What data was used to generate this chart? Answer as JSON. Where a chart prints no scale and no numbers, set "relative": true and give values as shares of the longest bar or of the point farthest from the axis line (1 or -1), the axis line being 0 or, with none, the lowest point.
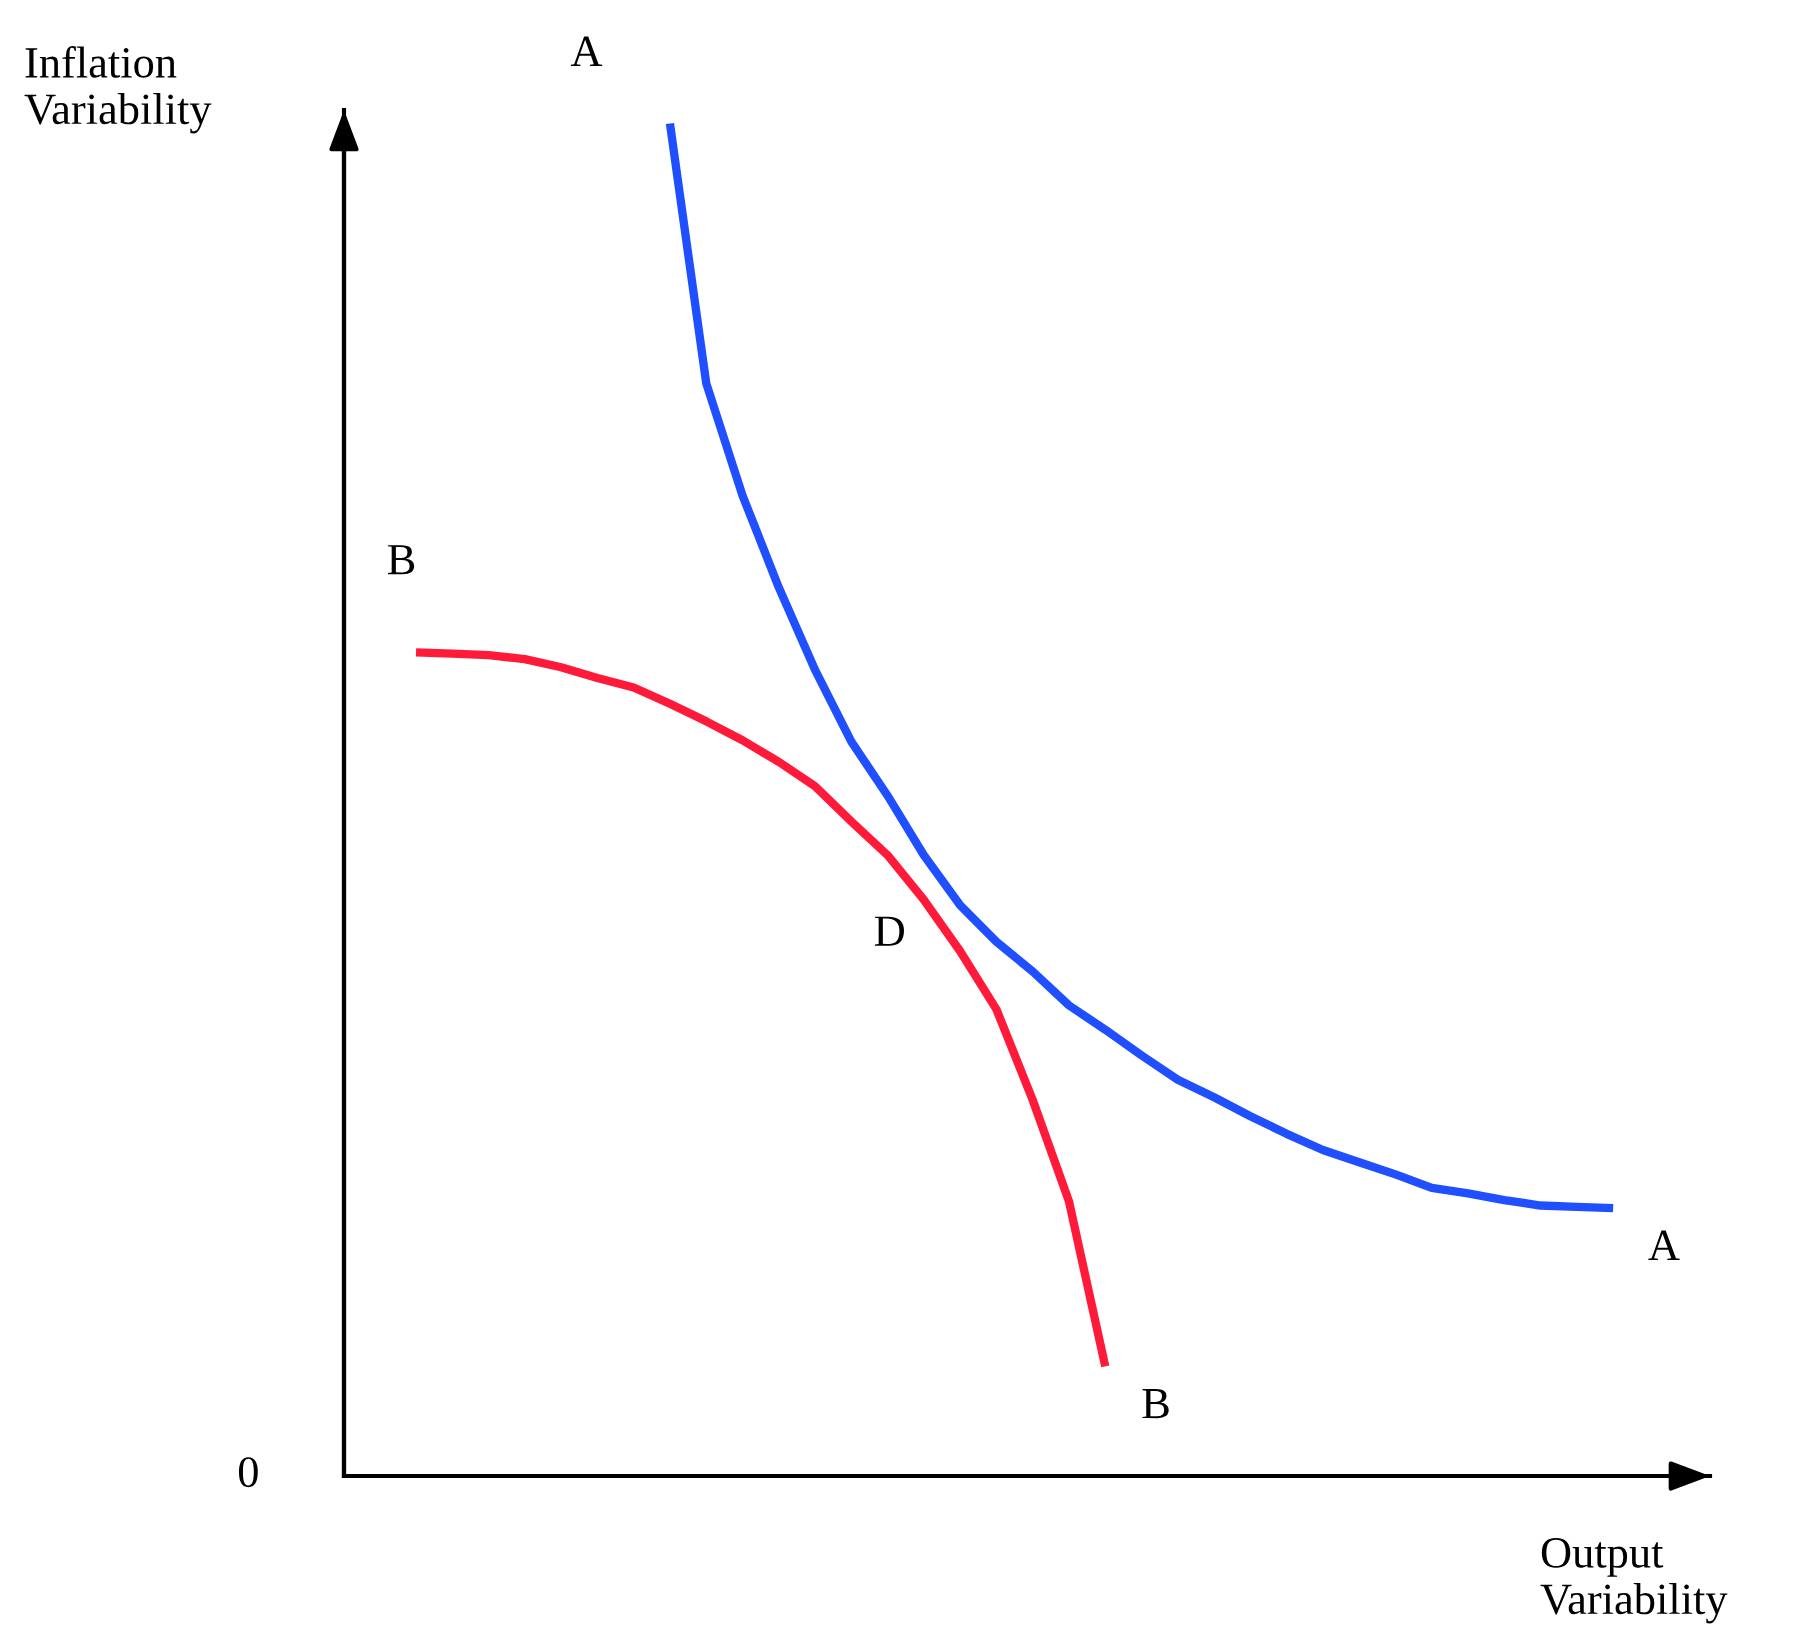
{
  "chart_data": {
    "type": "line",
    "relative": true,
    "xlabel": "Output\nVariability",
    "ylabel": "Inflation\nVariability",
    "categories": [
      null,
      null,
      null,
      null,
      null,
      null,
      null,
      null,
      null,
      null,
      null,
      null,
      null,
      null,
      null,
      null,
      null,
      null,
      null,
      null,
      null,
      null,
      null,
      null,
      null,
      null,
      null,
      null,
      null,
      null,
      null,
      null,
      null,
      null
    ],
    "series": [
      {
        "name": "A",
        "color": "#1f4fff",
        "values": [
          null,
          null,
          null,
          null,
          null,
          null,
          null,
          1.0,
          0.808,
          0.725,
          0.657,
          0.596,
          0.543,
          0.503,
          0.459,
          0.422,
          0.395,
          0.373,
          0.348,
          0.33,
          0.311,
          0.293,
          0.28,
          0.266,
          0.253,
          0.241,
          0.232,
          0.223,
          0.213,
          0.209,
          0.204,
          0.2,
          0.199,
          0.198
        ]
      },
      {
        "name": "B",
        "color": "#ff1a3a",
        "values": [
          0.609,
          0.608,
          0.607,
          0.604,
          0.598,
          0.59,
          0.583,
          0.571,
          0.558,
          0.544,
          0.528,
          0.51,
          0.484,
          0.459,
          0.426,
          0.388,
          0.345,
          0.278,
          0.203,
          0.081,
          null,
          null,
          null,
          null,
          null,
          null,
          null,
          null,
          null,
          null,
          null,
          null,
          null,
          null
        ]
      }
    ],
    "annotations": [
      "D",
      "0"
    ],
    "legend": false,
    "marker": "none",
    "line_style": "solid"
  }
}
